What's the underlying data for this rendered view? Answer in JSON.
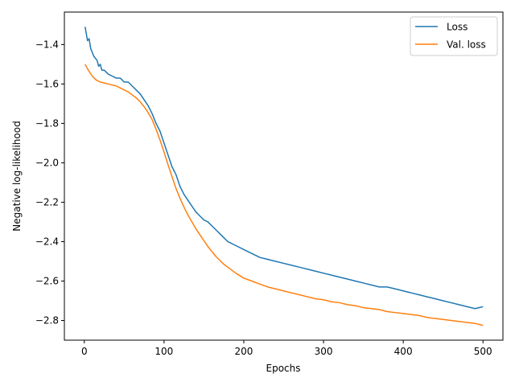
{
  "chart_data": {
    "type": "line",
    "xlabel": "Epochs",
    "ylabel": "Negative log-likelihood",
    "xlim": [
      -25,
      525
    ],
    "ylim": [
      -2.9,
      -1.235
    ],
    "x_ticks": [
      0,
      100,
      200,
      300,
      400,
      500
    ],
    "y_ticks": [
      -2.8,
      -2.6,
      -2.4,
      -2.2,
      -2.0,
      -1.8,
      -1.6,
      -1.4
    ],
    "x_tick_labels": [
      "0",
      "100",
      "200",
      "300",
      "400",
      "500"
    ],
    "y_tick_labels": [
      "−2.8",
      "−2.6",
      "−2.4",
      "−2.2",
      "−2.0",
      "−1.8",
      "−1.6",
      "−1.4"
    ],
    "grid": false,
    "legend_position": "top-right",
    "series": [
      {
        "name": "Loss",
        "color": "#1f77b4",
        "x": [
          1,
          4,
          6,
          8,
          12,
          16,
          18,
          20,
          22,
          25,
          30,
          35,
          40,
          45,
          50,
          55,
          60,
          65,
          70,
          75,
          80,
          85,
          90,
          95,
          100,
          105,
          110,
          115,
          120,
          125,
          130,
          135,
          140,
          145,
          150,
          155,
          160,
          165,
          170,
          175,
          180,
          190,
          200,
          210,
          220,
          230,
          240,
          250,
          260,
          270,
          280,
          290,
          300,
          310,
          320,
          330,
          340,
          350,
          360,
          370,
          380,
          390,
          400,
          410,
          420,
          430,
          440,
          450,
          460,
          470,
          480,
          490,
          500
        ],
        "y": [
          -1.31,
          -1.38,
          -1.37,
          -1.42,
          -1.46,
          -1.48,
          -1.51,
          -1.5,
          -1.53,
          -1.53,
          -1.55,
          -1.56,
          -1.57,
          -1.57,
          -1.59,
          -1.59,
          -1.61,
          -1.63,
          -1.65,
          -1.68,
          -1.71,
          -1.75,
          -1.8,
          -1.84,
          -1.9,
          -1.96,
          -2.02,
          -2.06,
          -2.12,
          -2.16,
          -2.19,
          -2.22,
          -2.25,
          -2.27,
          -2.29,
          -2.3,
          -2.32,
          -2.34,
          -2.36,
          -2.38,
          -2.4,
          -2.42,
          -2.44,
          -2.46,
          -2.48,
          -2.49,
          -2.5,
          -2.51,
          -2.52,
          -2.53,
          -2.54,
          -2.55,
          -2.56,
          -2.57,
          -2.58,
          -2.59,
          -2.6,
          -2.61,
          -2.62,
          -2.63,
          -2.63,
          -2.64,
          -2.65,
          -2.66,
          -2.67,
          -2.68,
          -2.69,
          -2.7,
          -2.71,
          -2.72,
          -2.73,
          -2.74,
          -2.73
        ]
      },
      {
        "name": "Val. loss",
        "color": "#ff7f0e",
        "x": [
          1,
          5,
          10,
          15,
          20,
          25,
          30,
          35,
          40,
          45,
          50,
          55,
          60,
          65,
          70,
          75,
          80,
          85,
          90,
          95,
          100,
          105,
          110,
          115,
          120,
          125,
          130,
          135,
          140,
          145,
          150,
          155,
          160,
          165,
          170,
          175,
          180,
          190,
          200,
          210,
          220,
          230,
          240,
          250,
          260,
          270,
          280,
          290,
          300,
          310,
          320,
          330,
          340,
          350,
          360,
          370,
          380,
          390,
          400,
          410,
          420,
          430,
          440,
          450,
          460,
          470,
          480,
          490,
          500
        ],
        "y": [
          -1.5,
          -1.53,
          -1.56,
          -1.58,
          -1.59,
          -1.595,
          -1.6,
          -1.605,
          -1.61,
          -1.62,
          -1.63,
          -1.64,
          -1.655,
          -1.67,
          -1.69,
          -1.715,
          -1.745,
          -1.78,
          -1.83,
          -1.885,
          -1.945,
          -2.01,
          -2.07,
          -2.13,
          -2.18,
          -2.225,
          -2.265,
          -2.3,
          -2.335,
          -2.365,
          -2.395,
          -2.425,
          -2.45,
          -2.475,
          -2.495,
          -2.515,
          -2.53,
          -2.56,
          -2.585,
          -2.6,
          -2.615,
          -2.63,
          -2.64,
          -2.65,
          -2.66,
          -2.67,
          -2.68,
          -2.69,
          -2.695,
          -2.705,
          -2.71,
          -2.72,
          -2.725,
          -2.735,
          -2.74,
          -2.745,
          -2.755,
          -2.76,
          -2.765,
          -2.77,
          -2.775,
          -2.785,
          -2.79,
          -2.795,
          -2.8,
          -2.805,
          -2.81,
          -2.815,
          -2.825
        ]
      }
    ]
  }
}
